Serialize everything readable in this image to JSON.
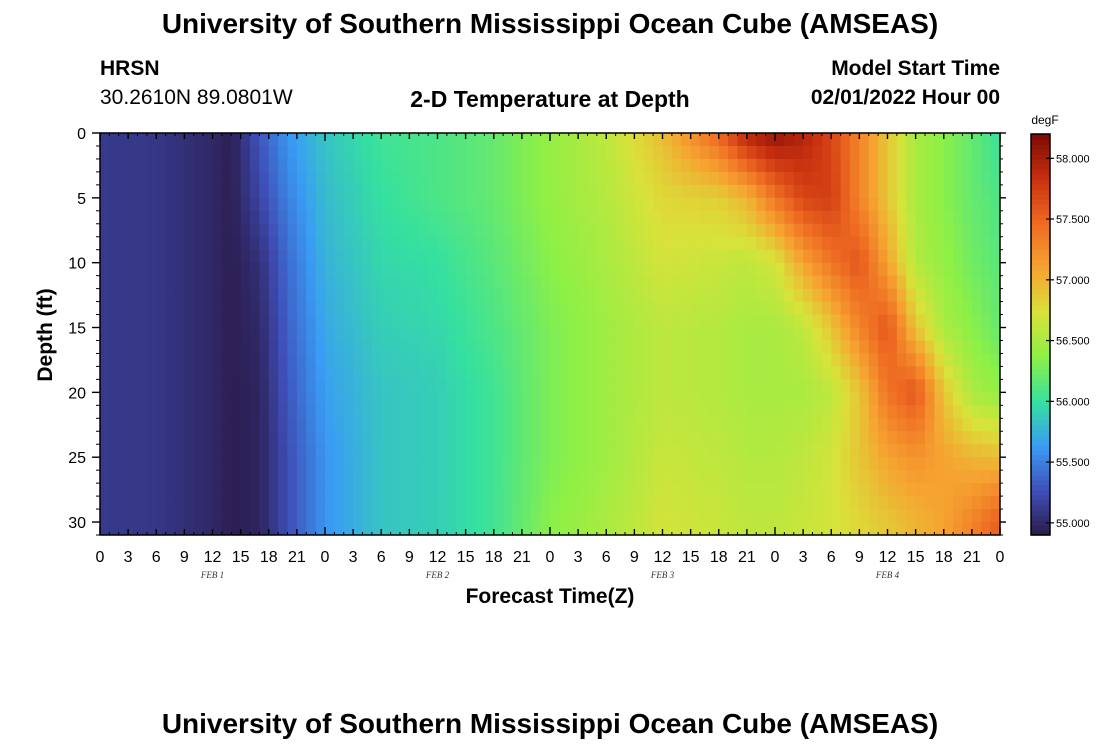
{
  "page": {
    "title": "University of Southern Mississippi Ocean Cube (AMSEAS)",
    "station": "HRSN",
    "coords": "30.2610N  89.0801W",
    "subtitle": "2-D Temperature at Depth",
    "model_start_label": "Model Start Time",
    "model_start_value": "02/01/2022 Hour 00",
    "footer_title": "University of Southern Mississippi Ocean Cube (AMSEAS)"
  },
  "chart_data": {
    "type": "heatmap",
    "xlabel": "Forecast Time(Z)",
    "ylabel": "Depth (ft)",
    "x_range_hours": [
      0,
      96
    ],
    "y_range_ft": [
      0,
      31
    ],
    "x_tick_labels": [
      "0",
      "3",
      "6",
      "9",
      "12",
      "15",
      "18",
      "21",
      "0",
      "3",
      "6",
      "9",
      "12",
      "15",
      "18",
      "21",
      "0",
      "3",
      "6",
      "9",
      "12",
      "15",
      "18",
      "21",
      "0",
      "3",
      "6",
      "9",
      "12",
      "15",
      "18",
      "21",
      "0"
    ],
    "y_ticks": [
      0,
      5,
      10,
      15,
      20,
      25,
      30
    ],
    "day_labels": [
      {
        "label": "FEB 1",
        "hour": 12
      },
      {
        "label": "FEB 2",
        "hour": 36
      },
      {
        "label": "FEB 3",
        "hour": 60
      },
      {
        "label": "FEB 4",
        "hour": 84
      }
    ],
    "colorbar": {
      "unit": "degF",
      "min": 54.9,
      "max": 58.2,
      "tick_labels": [
        "55.000",
        "55.500",
        "56.000",
        "56.500",
        "57.000",
        "57.500",
        "58.000"
      ],
      "tick_values": [
        55.0,
        55.5,
        56.0,
        56.5,
        57.0,
        57.5,
        58.0
      ],
      "colors": [
        "#2a1a4a",
        "#3f4fb8",
        "#3a9cf5",
        "#35e0a0",
        "#8ef046",
        "#d9e23a",
        "#f6a331",
        "#ee6a22",
        "#c8300f",
        "#7d0a04"
      ]
    },
    "time_hours": [
      0,
      6,
      12,
      14,
      17,
      20,
      24,
      30,
      36,
      42,
      48,
      54,
      60,
      66,
      69,
      72,
      75,
      78,
      81,
      84,
      87,
      90,
      93,
      96
    ],
    "depth_ft": [
      0,
      5,
      10,
      15,
      20,
      25,
      30
    ],
    "values_degF": [
      [
        55.12,
        55.1,
        55.0,
        54.93,
        55.3,
        55.6,
        55.85,
        56.05,
        56.1,
        56.2,
        56.4,
        56.6,
        56.95,
        57.5,
        57.95,
        58.1,
        57.95,
        57.7,
        57.3,
        56.9,
        56.5,
        56.35,
        56.2,
        56.0
      ],
      [
        55.12,
        55.1,
        55.0,
        54.93,
        55.2,
        55.5,
        55.8,
        56.0,
        56.1,
        56.2,
        56.4,
        56.55,
        56.8,
        56.85,
        57.0,
        57.4,
        57.7,
        57.75,
        57.3,
        56.9,
        56.5,
        56.35,
        56.2,
        56.1
      ],
      [
        55.12,
        55.1,
        55.0,
        54.93,
        55.05,
        55.4,
        55.75,
        55.95,
        56.0,
        56.15,
        56.35,
        56.5,
        56.7,
        56.65,
        56.6,
        56.7,
        57.1,
        57.4,
        57.6,
        57.1,
        56.55,
        56.4,
        56.25,
        56.15
      ],
      [
        55.12,
        55.1,
        55.0,
        54.93,
        55.0,
        55.35,
        55.7,
        55.9,
        55.95,
        56.1,
        56.3,
        56.45,
        56.6,
        56.55,
        56.5,
        56.5,
        56.6,
        56.9,
        57.3,
        57.6,
        56.9,
        56.5,
        56.35,
        56.2
      ],
      [
        55.12,
        55.1,
        55.0,
        54.93,
        54.97,
        55.3,
        55.65,
        55.85,
        55.9,
        56.05,
        56.3,
        56.45,
        56.6,
        56.55,
        56.5,
        56.5,
        56.5,
        56.6,
        56.9,
        57.4,
        57.6,
        56.9,
        56.5,
        56.4
      ],
      [
        55.12,
        55.1,
        55.0,
        54.93,
        54.97,
        55.25,
        55.6,
        55.85,
        55.9,
        56.05,
        56.3,
        56.45,
        56.65,
        56.6,
        56.55,
        56.55,
        56.6,
        56.7,
        56.9,
        57.1,
        57.2,
        57.1,
        57.0,
        56.95
      ],
      [
        55.12,
        55.1,
        55.0,
        54.93,
        54.97,
        55.25,
        55.6,
        55.85,
        55.9,
        56.05,
        56.35,
        56.5,
        56.7,
        56.65,
        56.6,
        56.6,
        56.65,
        56.7,
        56.8,
        56.9,
        57.0,
        57.1,
        57.3,
        57.55
      ]
    ]
  }
}
